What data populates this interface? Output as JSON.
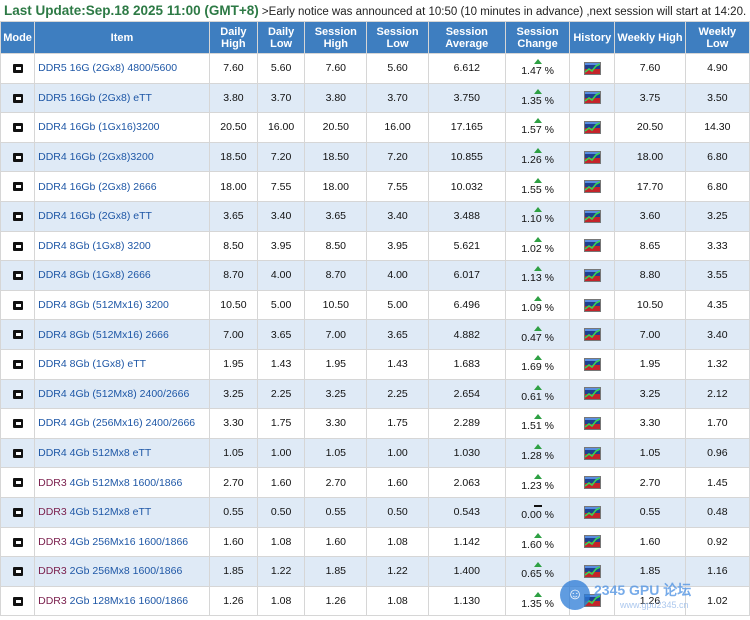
{
  "banner": {
    "lead": "Last Update:Sep.18 2025 11:00 (GMT+8)",
    "notice": " >Early notice was announced at 10:50 (10 minutes in advance) ,next session will start at 14:20."
  },
  "columns": [
    "Mode",
    "Item",
    "Daily High",
    "Daily Low",
    "Session High",
    "Session Low",
    "Session Average",
    "Session Change",
    "History",
    "Weekly High",
    "Weekly Low"
  ],
  "icons": {
    "mode": "document-icon",
    "history": "history-chart-icon",
    "up": "triangle-up-icon",
    "flat": "dash-icon"
  },
  "colors": {
    "header_bg": "#3e7ec0",
    "row_alt": "#dfeaf6",
    "ddr_link": "#1e57a6",
    "ddr3_prefix": "#7a1e4c",
    "up": "#2ea043"
  },
  "rows": [
    {
      "prefix": "DDR5",
      "rest": " 16G (2Gx8) 4800/5600",
      "daily_high": "7.60",
      "daily_low": "5.60",
      "session_high": "7.60",
      "session_low": "5.60",
      "session_avg": "6.612",
      "change": "1.47 %",
      "dir": "up",
      "weekly_high": "7.60",
      "weekly_low": "4.90"
    },
    {
      "prefix": "DDR5",
      "rest": " 16Gb (2Gx8) eTT",
      "daily_high": "3.80",
      "daily_low": "3.70",
      "session_high": "3.80",
      "session_low": "3.70",
      "session_avg": "3.750",
      "change": "1.35 %",
      "dir": "up",
      "weekly_high": "3.75",
      "weekly_low": "3.50"
    },
    {
      "prefix": "DDR4",
      "rest": " 16Gb (1Gx16)3200",
      "daily_high": "20.50",
      "daily_low": "16.00",
      "session_high": "20.50",
      "session_low": "16.00",
      "session_avg": "17.165",
      "change": "1.57 %",
      "dir": "up",
      "weekly_high": "20.50",
      "weekly_low": "14.30"
    },
    {
      "prefix": "DDR4",
      "rest": " 16Gb (2Gx8)3200",
      "daily_high": "18.50",
      "daily_low": "7.20",
      "session_high": "18.50",
      "session_low": "7.20",
      "session_avg": "10.855",
      "change": "1.26 %",
      "dir": "up",
      "weekly_high": "18.00",
      "weekly_low": "6.80"
    },
    {
      "prefix": "DDR4",
      "rest": " 16Gb (2Gx8) 2666",
      "daily_high": "18.00",
      "daily_low": "7.55",
      "session_high": "18.00",
      "session_low": "7.55",
      "session_avg": "10.032",
      "change": "1.55 %",
      "dir": "up",
      "weekly_high": "17.70",
      "weekly_low": "6.80"
    },
    {
      "prefix": "DDR4",
      "rest": " 16Gb (2Gx8) eTT",
      "daily_high": "3.65",
      "daily_low": "3.40",
      "session_high": "3.65",
      "session_low": "3.40",
      "session_avg": "3.488",
      "change": "1.10 %",
      "dir": "up",
      "weekly_high": "3.60",
      "weekly_low": "3.25"
    },
    {
      "prefix": "DDR4",
      "rest": " 8Gb (1Gx8) 3200",
      "daily_high": "8.50",
      "daily_low": "3.95",
      "session_high": "8.50",
      "session_low": "3.95",
      "session_avg": "5.621",
      "change": "1.02 %",
      "dir": "up",
      "weekly_high": "8.65",
      "weekly_low": "3.33"
    },
    {
      "prefix": "DDR4",
      "rest": " 8Gb (1Gx8) 2666",
      "daily_high": "8.70",
      "daily_low": "4.00",
      "session_high": "8.70",
      "session_low": "4.00",
      "session_avg": "6.017",
      "change": "1.13 %",
      "dir": "up",
      "weekly_high": "8.80",
      "weekly_low": "3.55"
    },
    {
      "prefix": "DDR4",
      "rest": " 8Gb (512Mx16) 3200",
      "daily_high": "10.50",
      "daily_low": "5.00",
      "session_high": "10.50",
      "session_low": "5.00",
      "session_avg": "6.496",
      "change": "1.09 %",
      "dir": "up",
      "weekly_high": "10.50",
      "weekly_low": "4.35"
    },
    {
      "prefix": "DDR4",
      "rest": " 8Gb (512Mx16) 2666",
      "daily_high": "7.00",
      "daily_low": "3.65",
      "session_high": "7.00",
      "session_low": "3.65",
      "session_avg": "4.882",
      "change": "0.47 %",
      "dir": "up",
      "weekly_high": "7.00",
      "weekly_low": "3.40"
    },
    {
      "prefix": "DDR4",
      "rest": " 8Gb (1Gx8) eTT",
      "daily_high": "1.95",
      "daily_low": "1.43",
      "session_high": "1.95",
      "session_low": "1.43",
      "session_avg": "1.683",
      "change": "1.69 %",
      "dir": "up",
      "weekly_high": "1.95",
      "weekly_low": "1.32"
    },
    {
      "prefix": "DDR4",
      "rest": " 4Gb (512Mx8) 2400/2666",
      "daily_high": "3.25",
      "daily_low": "2.25",
      "session_high": "3.25",
      "session_low": "2.25",
      "session_avg": "2.654",
      "change": "0.61 %",
      "dir": "up",
      "weekly_high": "3.25",
      "weekly_low": "2.12"
    },
    {
      "prefix": "DDR4",
      "rest": " 4Gb (256Mx16) 2400/2666",
      "daily_high": "3.30",
      "daily_low": "1.75",
      "session_high": "3.30",
      "session_low": "1.75",
      "session_avg": "2.289",
      "change": "1.51 %",
      "dir": "up",
      "weekly_high": "3.30",
      "weekly_low": "1.70"
    },
    {
      "prefix": "DDR4",
      "rest": " 4Gb 512Mx8 eTT",
      "daily_high": "1.05",
      "daily_low": "1.00",
      "session_high": "1.05",
      "session_low": "1.00",
      "session_avg": "1.030",
      "change": "1.28 %",
      "dir": "up",
      "weekly_high": "1.05",
      "weekly_low": "0.96"
    },
    {
      "prefix": "DDR3",
      "rest": " 4Gb 512Mx8 1600/1866",
      "daily_high": "2.70",
      "daily_low": "1.60",
      "session_high": "2.70",
      "session_low": "1.60",
      "session_avg": "2.063",
      "change": "1.23 %",
      "dir": "up",
      "weekly_high": "2.70",
      "weekly_low": "1.45"
    },
    {
      "prefix": "DDR3",
      "rest": " 4Gb 512Mx8 eTT",
      "daily_high": "0.55",
      "daily_low": "0.50",
      "session_high": "0.55",
      "session_low": "0.50",
      "session_avg": "0.543",
      "change": "0.00 %",
      "dir": "flat",
      "weekly_high": "0.55",
      "weekly_low": "0.48"
    },
    {
      "prefix": "DDR3",
      "rest": " 4Gb 256Mx16 1600/1866",
      "daily_high": "1.60",
      "daily_low": "1.08",
      "session_high": "1.60",
      "session_low": "1.08",
      "session_avg": "1.142",
      "change": "1.60 %",
      "dir": "up",
      "weekly_high": "1.60",
      "weekly_low": "0.92"
    },
    {
      "prefix": "DDR3",
      "rest": " 2Gb 256Mx8 1600/1866",
      "daily_high": "1.85",
      "daily_low": "1.22",
      "session_high": "1.85",
      "session_low": "1.22",
      "session_avg": "1.400",
      "change": "0.65 %",
      "dir": "up",
      "weekly_high": "1.85",
      "weekly_low": "1.16"
    },
    {
      "prefix": "DDR3",
      "rest": " 2Gb 128Mx16 1600/1866",
      "daily_high": "1.26",
      "daily_low": "1.08",
      "session_high": "1.26",
      "session_low": "1.08",
      "session_avg": "1.130",
      "change": "1.35 %",
      "dir": "up",
      "weekly_high": "1.26",
      "weekly_low": "1.02"
    }
  ]
}
